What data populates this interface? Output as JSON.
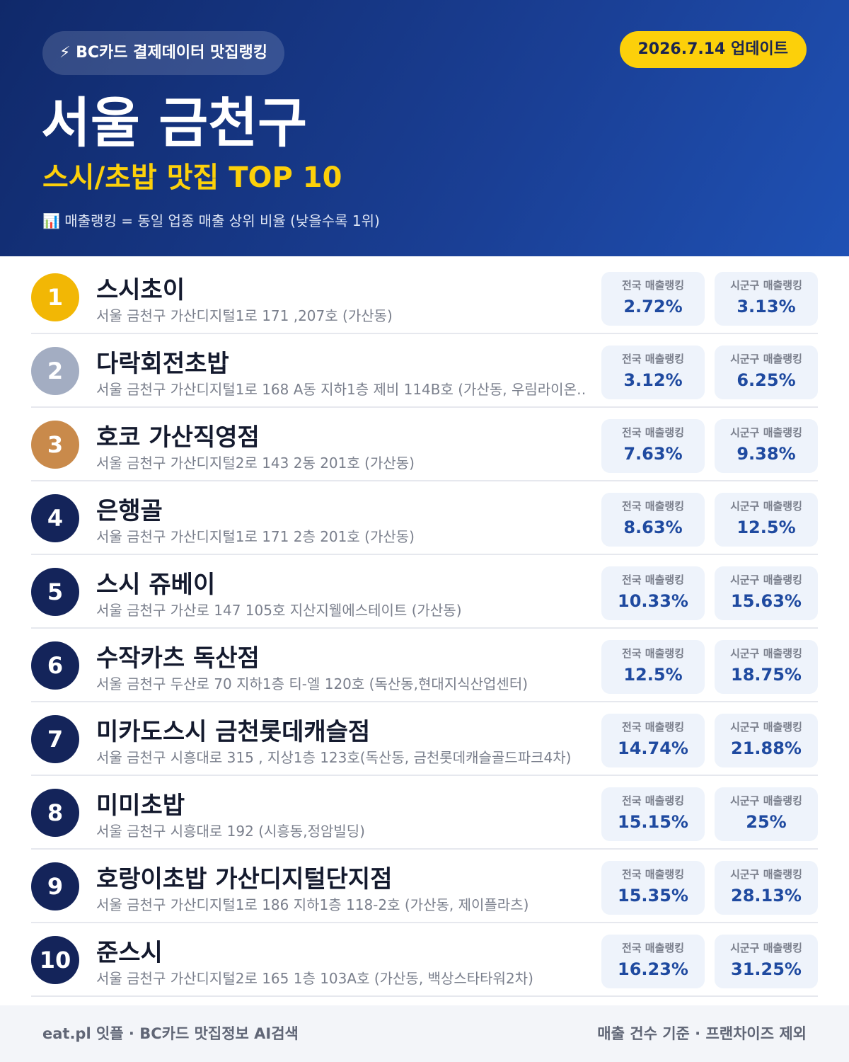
{
  "header": {
    "badge": "⚡ BC카드 결제데이터 맛집랭킹",
    "update": "2026.7.14 업데이트",
    "title": "서울 금천구",
    "subtitle": "스시/초밥 맛집 TOP 10",
    "note": "📊 매출랭킹 = 동일 업종 매출 상위 비율 (낮을수록 1위)"
  },
  "rank_labels": {
    "national": "전국 매출랭킹",
    "district": "시군구 매출랭킹"
  },
  "items": [
    {
      "rank": "1",
      "name": "스시초이",
      "address": "서울 금천구 가산디지털1로 171 ,207호 (가산동)",
      "national": "2.72%",
      "district": "3.13%"
    },
    {
      "rank": "2",
      "name": "다락회전초밥",
      "address": "서울 금천구 가산디지털1로 168 A동 지하1층 제비 114B호 (가산동, 우림라이온…",
      "national": "3.12%",
      "district": "6.25%"
    },
    {
      "rank": "3",
      "name": "호코 가산직영점",
      "address": "서울 금천구 가산디지털2로 143 2동 201호 (가산동)",
      "national": "7.63%",
      "district": "9.38%"
    },
    {
      "rank": "4",
      "name": "은행골",
      "address": "서울 금천구 가산디지털1로 171 2층 201호 (가산동)",
      "national": "8.63%",
      "district": "12.5%"
    },
    {
      "rank": "5",
      "name": "스시 쥬베이",
      "address": "서울 금천구 가산로 147 105호 지산지웰에스테이트 (가산동)",
      "national": "10.33%",
      "district": "15.63%"
    },
    {
      "rank": "6",
      "name": "수작카츠 독산점",
      "address": "서울 금천구 두산로 70 지하1층 티-엘 120호 (독산동,현대지식산업센터)",
      "national": "12.5%",
      "district": "18.75%"
    },
    {
      "rank": "7",
      "name": "미카도스시 금천롯데캐슬점",
      "address": "서울 금천구 시흥대로 315 , 지상1층 123호(독산동, 금천롯데캐슬골드파크4차)",
      "national": "14.74%",
      "district": "21.88%"
    },
    {
      "rank": "8",
      "name": "미미초밥",
      "address": "서울 금천구 시흥대로 192 (시흥동,정암빌딩)",
      "national": "15.15%",
      "district": "25%"
    },
    {
      "rank": "9",
      "name": "호랑이초밥 가산디지털단지점",
      "address": "서울 금천구 가산디지털1로 186 지하1층 118-2호 (가산동, 제이플라츠)",
      "national": "15.35%",
      "district": "28.13%"
    },
    {
      "rank": "10",
      "name": "준스시",
      "address": "서울 금천구 가산디지털2로 165 1층 103A호 (가산동, 백상스타타워2차)",
      "national": "16.23%",
      "district": "31.25%"
    }
  ],
  "footer": {
    "left": "eat.pl 잇플 · BC카드 맛집정보 AI검색",
    "right": "매출 건수 기준 · 프랜차이즈 제외"
  }
}
